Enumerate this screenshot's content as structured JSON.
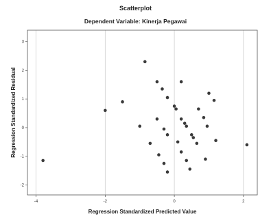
{
  "chart_data": {
    "type": "scatter",
    "title": "Scatterplot",
    "subtitle": "Dependent Variable: Kinerja Pegawai",
    "xlabel": "Regression Standardized Predicted Value",
    "ylabel": "Regression Standardized Residual",
    "xlim": [
      -4.25,
      2.4
    ],
    "ylim": [
      -2.35,
      3.4
    ],
    "xticks": [
      -4,
      -2,
      0,
      2
    ],
    "yticks": [
      -2,
      -1,
      0,
      1,
      2,
      3
    ],
    "xgrid": [
      -4,
      -2,
      0,
      2
    ],
    "ygrid": [],
    "points": [
      {
        "x": -3.8,
        "y": -1.15
      },
      {
        "x": -2.0,
        "y": 0.6
      },
      {
        "x": -1.5,
        "y": 0.9
      },
      {
        "x": -0.85,
        "y": 2.3
      },
      {
        "x": -1.0,
        "y": 0.05
      },
      {
        "x": -0.7,
        "y": -0.55
      },
      {
        "x": -0.5,
        "y": 1.6
      },
      {
        "x": -0.5,
        "y": 0.3
      },
      {
        "x": -0.45,
        "y": -0.95
      },
      {
        "x": -0.35,
        "y": 1.35
      },
      {
        "x": -0.3,
        "y": -0.05
      },
      {
        "x": -0.3,
        "y": -1.25
      },
      {
        "x": -0.2,
        "y": 1.05
      },
      {
        "x": -0.2,
        "y": -0.25
      },
      {
        "x": -0.2,
        "y": -1.55
      },
      {
        "x": 0.0,
        "y": 0.75
      },
      {
        "x": 0.05,
        "y": 0.65
      },
      {
        "x": 0.1,
        "y": -0.5
      },
      {
        "x": 0.2,
        "y": 1.6
      },
      {
        "x": 0.2,
        "y": 0.3
      },
      {
        "x": 0.2,
        "y": -0.85
      },
      {
        "x": 0.3,
        "y": 0.15
      },
      {
        "x": 0.35,
        "y": 0.05
      },
      {
        "x": 0.35,
        "y": -1.15
      },
      {
        "x": 0.45,
        "y": -1.45
      },
      {
        "x": 0.5,
        "y": -0.25
      },
      {
        "x": 0.55,
        "y": -0.35
      },
      {
        "x": 0.65,
        "y": -0.55
      },
      {
        "x": 0.7,
        "y": 0.65
      },
      {
        "x": 0.85,
        "y": 0.35
      },
      {
        "x": 0.9,
        "y": -1.1
      },
      {
        "x": 0.95,
        "y": 0.05
      },
      {
        "x": 1.0,
        "y": 1.2
      },
      {
        "x": 1.15,
        "y": 0.95
      },
      {
        "x": 1.2,
        "y": -0.45
      },
      {
        "x": 2.1,
        "y": -0.6
      }
    ]
  }
}
